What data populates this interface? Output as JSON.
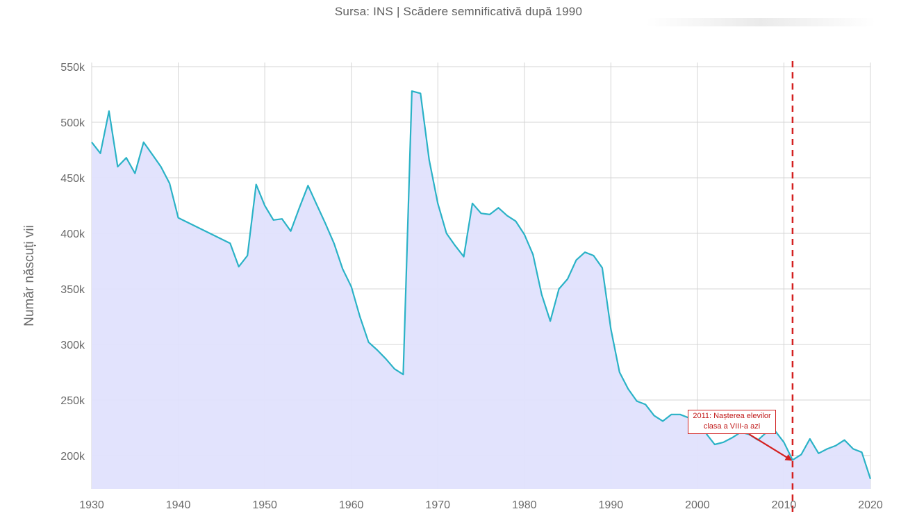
{
  "subtitle": "Sursa: INS | Scădere semnificativă după 1990",
  "colors": {
    "line": "#2ab2c6",
    "fill": "#e0e1fd",
    "grid": "#d4d4d4",
    "marker": "#d42020"
  },
  "chart_data": {
    "type": "area",
    "title": "",
    "subtitle": "Sursa: INS | Scădere semnificativă după 1990",
    "xlabel": "",
    "ylabel": "Număr născuți vii",
    "xlim": [
      1930,
      2020
    ],
    "ylim": [
      170000,
      550000
    ],
    "x_ticks": [
      1930,
      1940,
      1950,
      1960,
      1970,
      1980,
      1990,
      2000,
      2010,
      2020
    ],
    "y_ticks": [
      200000,
      250000,
      300000,
      350000,
      400000,
      450000,
      500000,
      550000
    ],
    "x_tick_labels": [
      "1930",
      "1940",
      "1950",
      "1960",
      "1970",
      "1980",
      "1990",
      "2000",
      "2010",
      "2020"
    ],
    "y_tick_labels": [
      "200k",
      "250k",
      "300k",
      "350k",
      "400k",
      "450k",
      "500k",
      "550k"
    ],
    "grid": true,
    "legend": "none",
    "series": [
      {
        "x": [
          1930,
          1931,
          1932,
          1933,
          1934,
          1935,
          1936,
          1937,
          1938,
          1939,
          1940,
          1946,
          1947,
          1948,
          1949,
          1950,
          1951,
          1952,
          1953,
          1954,
          1955,
          1956,
          1957,
          1958,
          1959,
          1960,
          1961,
          1962,
          1963,
          1964,
          1965,
          1966,
          1967,
          1968,
          1969,
          1970,
          1971,
          1972,
          1973,
          1974,
          1975,
          1976,
          1977,
          1978,
          1979,
          1980,
          1981,
          1982,
          1983,
          1984,
          1985,
          1986,
          1987,
          1988,
          1989,
          1990,
          1991,
          1992,
          1993,
          1994,
          1995,
          1996,
          1997,
          1998,
          1999,
          2000,
          2001,
          2002,
          2003,
          2004,
          2005,
          2006,
          2007,
          2008,
          2009,
          2010,
          2011,
          2012,
          2013,
          2014,
          2015,
          2016,
          2017,
          2018,
          2019,
          2020
        ],
        "values": [
          482000,
          472000,
          510000,
          460000,
          468000,
          454000,
          482000,
          471000,
          460000,
          445000,
          414000,
          391000,
          370000,
          380000,
          444000,
          425000,
          412000,
          413000,
          402000,
          423000,
          443000,
          426000,
          409000,
          391000,
          368000,
          352000,
          325000,
          302000,
          295000,
          287000,
          278000,
          273000,
          528000,
          526000,
          466000,
          427000,
          400000,
          389000,
          379000,
          427000,
          418000,
          417000,
          423000,
          416000,
          411000,
          399000,
          381000,
          345000,
          321000,
          350000,
          359000,
          376000,
          383000,
          380000,
          369000,
          314000,
          275000,
          260000,
          249000,
          246000,
          236000,
          231000,
          237000,
          237000,
          234000,
          234000,
          220000,
          210000,
          212000,
          216000,
          221000,
          219000,
          214000,
          221000,
          222000,
          212000,
          196000,
          201000,
          215000,
          202000,
          206000,
          209000,
          214000,
          206000,
          203000,
          179000
        ]
      }
    ],
    "reference_line": {
      "x": 2011,
      "style": "dashed"
    },
    "annotation": {
      "lines": [
        "2011: Nașterea elevilor",
        "clasa a VIII-a azi"
      ],
      "arrow_to": {
        "x": 2011,
        "y": 196000
      }
    }
  }
}
